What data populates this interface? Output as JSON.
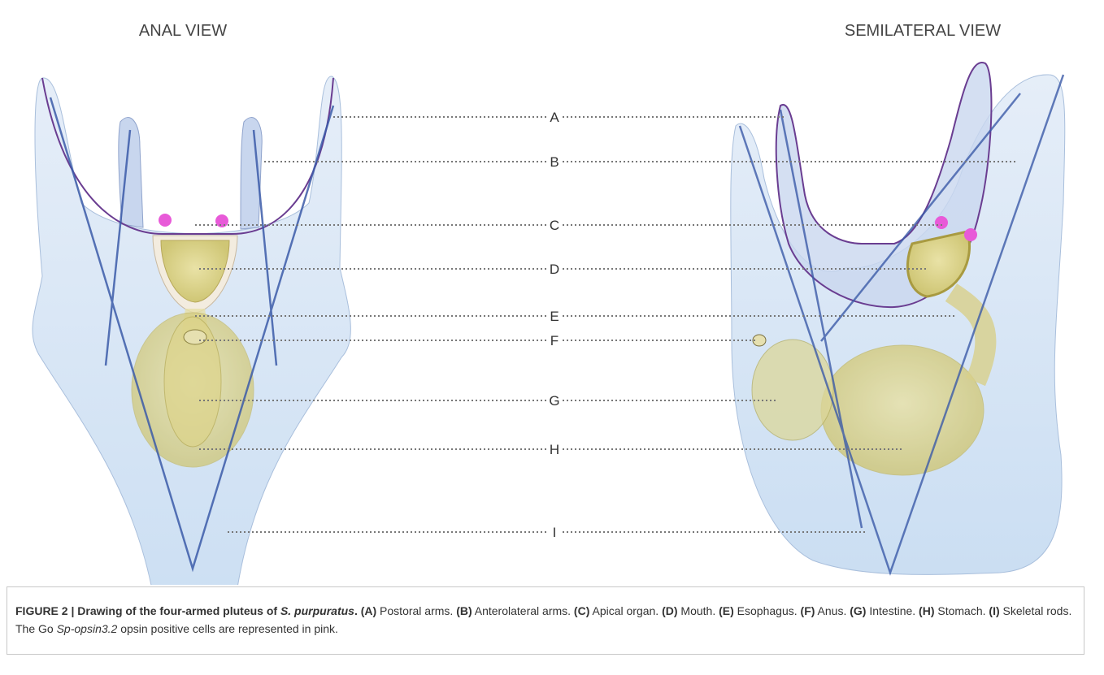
{
  "figure": {
    "views": [
      "ANAL VIEW",
      "SEMILATERAL VIEW"
    ],
    "labels": [
      "A",
      "B",
      "C",
      "D",
      "E",
      "F",
      "G",
      "H",
      "I"
    ],
    "caption": [
      {
        "text": "FIGURE 2 | Drawing of the four-armed pluteus of ",
        "style": "bold"
      },
      {
        "text": "S. purpuratus",
        "style": "bold-italic"
      },
      {
        "text": ". ",
        "style": "bold"
      },
      {
        "text": "(A)",
        "style": "bold"
      },
      {
        "text": " Postoral arms. ",
        "style": "normal"
      },
      {
        "text": "(B)",
        "style": "bold"
      },
      {
        "text": " Anterolateral arms. ",
        "style": "normal"
      },
      {
        "text": "(C)",
        "style": "bold"
      },
      {
        "text": " Apical organ. ",
        "style": "normal"
      },
      {
        "text": "(D)",
        "style": "bold"
      },
      {
        "text": " Mouth. ",
        "style": "normal"
      },
      {
        "text": "(E)",
        "style": "bold"
      },
      {
        "text": " Esophagus. ",
        "style": "normal"
      },
      {
        "text": "(F)",
        "style": "bold"
      },
      {
        "text": " Anus. ",
        "style": "normal"
      },
      {
        "text": "(G)",
        "style": "bold"
      },
      {
        "text": " Intestine. ",
        "style": "normal"
      },
      {
        "text": "(H)",
        "style": "bold"
      },
      {
        "text": " Stomach. ",
        "style": "normal"
      },
      {
        "text": "(I)",
        "style": "bold"
      },
      {
        "text": " Skeletal rods. The Go ",
        "style": "normal"
      },
      {
        "text": "Sp-opsin3.2",
        "style": "italic"
      },
      {
        "text": " opsin positive cells are represented in pink.",
        "style": "normal"
      }
    ]
  }
}
